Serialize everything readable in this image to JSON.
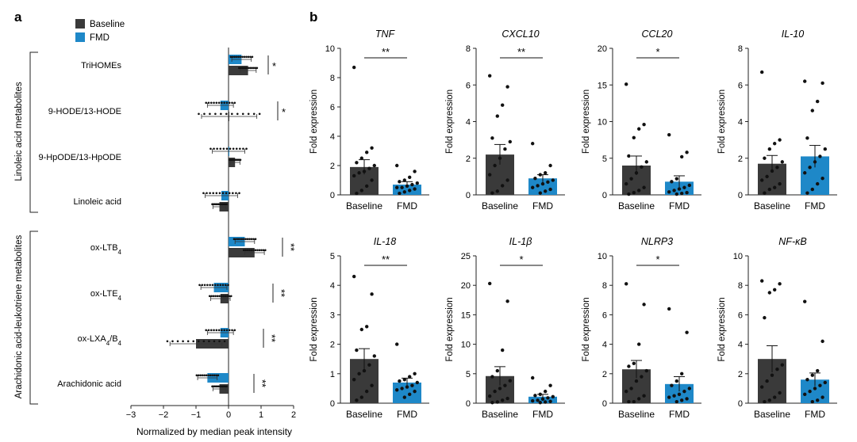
{
  "colors": {
    "baseline": "#3a3a3a",
    "fmd": "#1e88c8",
    "axis": "#222222"
  },
  "panel_a": {
    "label": "a",
    "legend": [
      "Baseline",
      "FMD"
    ],
    "group_labels": [
      "Linoleic acid metabolites",
      "Arachidonic acid-leukotriene metabolites"
    ],
    "xlabel": "Normalized by median peak intensity",
    "xticks": [
      "−3",
      "−2",
      "−1",
      "0",
      "1",
      "2"
    ]
  },
  "panel_b": {
    "label": "b",
    "ylabel": "Fold expression"
  },
  "chart_data": [
    {
      "type": "bar",
      "orientation": "horizontal",
      "panel": "a",
      "xlabel": "Normalized by median peak intensity",
      "xlim": [
        -3,
        2
      ],
      "categories": [
        "TriHOMEs",
        "9-HODE/13-HODE",
        "9-HpODE/13-HpODE",
        "Linoleic acid",
        "ox-LTB4",
        "ox-LTE4",
        "ox-LXA4/B4",
        "Arachidonic acid"
      ],
      "category_labels": [
        {
          "base": "TriHOMEs",
          "sub": "",
          "tail": ""
        },
        {
          "base": "9-HODE/13-HODE",
          "sub": "",
          "tail": ""
        },
        {
          "base": "9-HpODE/13-HpODE",
          "sub": "",
          "tail": ""
        },
        {
          "base": "Linoleic acid",
          "sub": "",
          "tail": ""
        },
        {
          "base": "ox-LTB",
          "sub": "4",
          "tail": ""
        },
        {
          "base": "ox-LTE",
          "sub": "4",
          "tail": ""
        },
        {
          "base": "ox-LXA",
          "sub": "4",
          "tail": "/B",
          "sub2": "4"
        },
        {
          "base": "Arachidonic acid",
          "sub": "",
          "tail": ""
        }
      ],
      "series": [
        {
          "name": "Baseline",
          "values": [
            0.6,
            0.02,
            0.2,
            -0.28,
            0.8,
            -0.25,
            -1.0,
            -0.28
          ],
          "errors": [
            0.25,
            0.85,
            0.15,
            0.2,
            0.3,
            0.3,
            0.8,
            0.2
          ]
        },
        {
          "name": "FMD",
          "values": [
            0.4,
            -0.25,
            0.0,
            -0.22,
            0.5,
            -0.45,
            -0.25,
            -0.65
          ],
          "errors": [
            0.3,
            0.4,
            0.5,
            0.5,
            0.3,
            0.4,
            0.4,
            0.3
          ]
        }
      ],
      "significance": [
        "*",
        "*",
        "",
        "",
        "**",
        "**",
        "**",
        "**"
      ]
    },
    {
      "type": "bar",
      "panel": "b",
      "title": "TNF",
      "ylabel": "Fold expression",
      "categories": [
        "Baseline",
        "FMD"
      ],
      "values": [
        1.9,
        0.7
      ],
      "errors": [
        0.5,
        0.2
      ],
      "ylim": [
        0,
        10
      ],
      "yticks": [
        0,
        2,
        4,
        6,
        8,
        10
      ],
      "significance": "**",
      "points": [
        [
          8.7,
          3.2,
          2.9,
          2.5,
          2.2,
          2.0,
          1.8,
          1.6,
          1.5,
          1.3,
          1.0,
          0.6,
          0.3,
          0.1
        ],
        [
          2.0,
          1.6,
          1.2,
          1.0,
          0.9,
          0.8,
          0.7,
          0.6,
          0.5,
          0.5,
          0.4,
          0.3,
          0.2,
          0.1
        ]
      ]
    },
    {
      "type": "bar",
      "panel": "b",
      "title": "CXCL10",
      "ylabel": "Fold expression",
      "categories": [
        "Baseline",
        "FMD"
      ],
      "values": [
        2.2,
        0.9
      ],
      "errors": [
        0.55,
        0.2
      ],
      "ylim": [
        0,
        8
      ],
      "yticks": [
        0,
        2,
        4,
        6,
        8
      ],
      "significance": "**",
      "points": [
        [
          6.5,
          5.9,
          4.9,
          4.3,
          3.1,
          2.9,
          2.5,
          2.0,
          1.6,
          1.1,
          0.8,
          0.5,
          0.2,
          0.1
        ],
        [
          2.8,
          1.6,
          1.2,
          1.1,
          0.9,
          0.8,
          0.7,
          0.6,
          0.5,
          0.4,
          0.3,
          0.2,
          0.1
        ]
      ]
    },
    {
      "type": "bar",
      "panel": "b",
      "title": "CCL20",
      "ylabel": "Fold expression",
      "categories": [
        "Baseline",
        "FMD"
      ],
      "values": [
        4.0,
        1.8
      ],
      "errors": [
        1.3,
        0.8
      ],
      "ylim": [
        0,
        20
      ],
      "yticks": [
        0,
        5,
        10,
        15,
        20
      ],
      "significance": "*",
      "points": [
        [
          15.1,
          9.6,
          9.0,
          7.8,
          5.3,
          4.5,
          3.8,
          3.0,
          2.2,
          1.5,
          1.0,
          0.6,
          0.3,
          0.1
        ],
        [
          8.2,
          5.8,
          5.2,
          2.2,
          1.8,
          1.3,
          1.0,
          0.8,
          0.6,
          0.4,
          0.3,
          0.2,
          0.1
        ]
      ]
    },
    {
      "type": "bar",
      "panel": "b",
      "title": "IL-10",
      "ylabel": "Fold expression",
      "categories": [
        "Baseline",
        "FMD"
      ],
      "values": [
        1.7,
        2.1
      ],
      "errors": [
        0.45,
        0.6
      ],
      "ylim": [
        0,
        8
      ],
      "yticks": [
        0,
        2,
        4,
        6,
        8
      ],
      "significance": "",
      "points": [
        [
          6.7,
          3.0,
          2.8,
          2.5,
          2.0,
          1.8,
          1.5,
          1.3,
          1.0,
          0.8,
          0.6,
          0.4,
          0.3,
          0.1
        ],
        [
          6.2,
          6.1,
          5.1,
          4.6,
          3.1,
          2.5,
          2.1,
          1.8,
          1.5,
          1.2,
          0.9,
          0.6,
          0.3,
          0.1
        ]
      ]
    },
    {
      "type": "bar",
      "panel": "b",
      "title": "IL-18",
      "ylabel": "Fold expression",
      "categories": [
        "Baseline",
        "FMD"
      ],
      "values": [
        1.5,
        0.7
      ],
      "errors": [
        0.35,
        0.15
      ],
      "ylim": [
        0,
        5
      ],
      "yticks": [
        0,
        1,
        2,
        3,
        4,
        5
      ],
      "significance": "**",
      "points": [
        [
          4.3,
          3.7,
          2.6,
          2.5,
          1.8,
          1.6,
          1.3,
          1.1,
          1.0,
          0.8,
          0.6,
          0.4,
          0.2,
          0.1
        ],
        [
          2.0,
          1.0,
          0.9,
          0.8,
          0.75,
          0.7,
          0.6,
          0.55,
          0.5,
          0.45,
          0.4,
          0.3,
          0.2
        ]
      ]
    },
    {
      "type": "bar",
      "panel": "b",
      "title": "IL-1β",
      "ylabel": "Fold expression",
      "categories": [
        "Baseline",
        "FMD"
      ],
      "values": [
        4.6,
        1.1
      ],
      "errors": [
        1.6,
        0.4
      ],
      "ylim": [
        0,
        25
      ],
      "yticks": [
        0,
        5,
        10,
        15,
        20,
        25
      ],
      "significance": "*",
      "points": [
        [
          20.3,
          17.3,
          9.0,
          5.5,
          4.5,
          3.8,
          3.0,
          2.5,
          2.0,
          1.2,
          0.8,
          0.5,
          0.2,
          0.1
        ],
        [
          4.3,
          3.0,
          2.0,
          1.5,
          1.3,
          1.1,
          0.9,
          0.7,
          0.5,
          0.4,
          0.3,
          0.2,
          0.1
        ]
      ]
    },
    {
      "type": "bar",
      "panel": "b",
      "title": "NLRP3",
      "ylabel": "Fold expression",
      "categories": [
        "Baseline",
        "FMD"
      ],
      "values": [
        2.3,
        1.3
      ],
      "errors": [
        0.6,
        0.5
      ],
      "ylim": [
        0,
        10
      ],
      "yticks": [
        0,
        2,
        4,
        6,
        8,
        10
      ],
      "significance": "*",
      "points": [
        [
          8.1,
          6.7,
          4.0,
          2.7,
          2.5,
          2.2,
          1.8,
          1.5,
          1.0,
          0.8,
          0.5,
          0.3,
          0.1,
          0.1
        ],
        [
          6.4,
          4.8,
          2.0,
          1.5,
          1.2,
          1.0,
          0.8,
          0.6,
          0.5,
          0.4,
          0.3,
          0.2,
          0.1
        ]
      ]
    },
    {
      "type": "bar",
      "panel": "b",
      "title": "NF-κB",
      "ylabel": "Fold expression",
      "categories": [
        "Baseline",
        "FMD"
      ],
      "values": [
        3.0,
        1.6
      ],
      "errors": [
        0.9,
        0.45
      ],
      "ylim": [
        0,
        10
      ],
      "yticks": [
        0,
        2,
        4,
        6,
        8,
        10
      ],
      "significance": "",
      "points": [
        [
          8.3,
          8.1,
          7.7,
          7.5,
          5.8,
          2.6,
          2.3,
          1.9,
          1.5,
          1.1,
          0.7,
          0.4,
          0.2,
          0.1
        ],
        [
          6.9,
          4.2,
          2.2,
          1.9,
          1.6,
          1.4,
          1.2,
          1.0,
          0.8,
          0.6,
          0.4,
          0.2,
          0.1
        ]
      ]
    }
  ]
}
